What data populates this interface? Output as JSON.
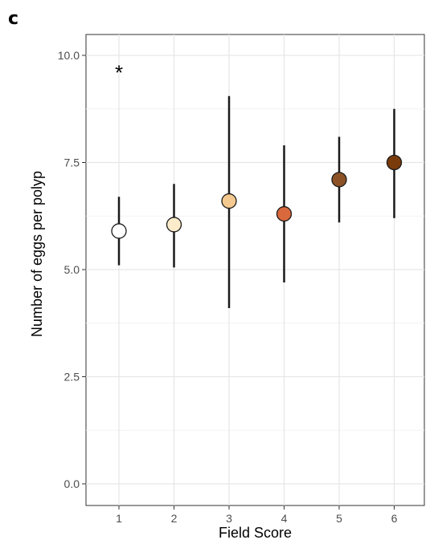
{
  "panel_label": "c",
  "chart_data": {
    "type": "scatter",
    "title": "",
    "xlabel": "Field Score",
    "ylabel": "Number of eggs per polyp",
    "ylim": [
      0,
      10.5
    ],
    "yticks": [
      0,
      2.5,
      5,
      7.5,
      10
    ],
    "ytick_labels": [
      "0.0",
      "2.5",
      "5.0",
      "7.5",
      "10.0"
    ],
    "categories": [
      "1",
      "2",
      "3",
      "4",
      "5",
      "6"
    ],
    "grid": true,
    "points": [
      {
        "x": "1",
        "y": 5.9,
        "low": 5.1,
        "high": 6.7,
        "color": "#ffffff"
      },
      {
        "x": "2",
        "y": 6.05,
        "low": 5.05,
        "high": 7.0,
        "color": "#fdeccb"
      },
      {
        "x": "3",
        "y": 6.6,
        "low": 4.1,
        "high": 9.05,
        "color": "#f4c98f"
      },
      {
        "x": "4",
        "y": 6.3,
        "low": 4.7,
        "high": 7.9,
        "color": "#d9683d"
      },
      {
        "x": "5",
        "y": 7.1,
        "low": 6.1,
        "high": 8.1,
        "color": "#8c5226"
      },
      {
        "x": "6",
        "y": 7.5,
        "low": 6.2,
        "high": 8.75,
        "color": "#7a3b0b"
      }
    ],
    "annotations": [
      {
        "text": "*",
        "x": "1",
        "y": 9.65
      }
    ]
  }
}
